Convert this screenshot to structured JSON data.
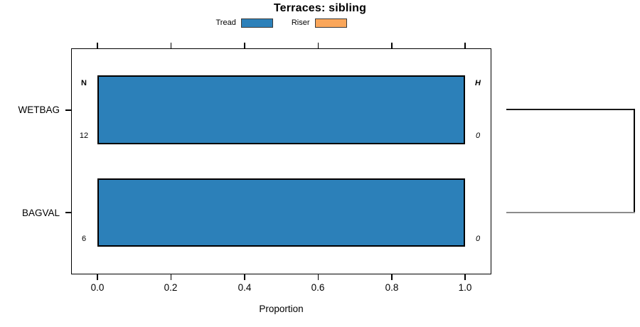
{
  "title": "Terraces: sibling",
  "legend": {
    "items": [
      {
        "label": "Tread",
        "color": "#2c80b9"
      },
      {
        "label": "Riser",
        "color": "#faa65a"
      }
    ]
  },
  "axis": {
    "xlabel": "Proportion",
    "xtick_labels": [
      "0.0",
      "0.2",
      "0.4",
      "0.6",
      "0.8",
      "1.0"
    ]
  },
  "annotations": {
    "left_header": "N",
    "right_header": "H",
    "n_values": [
      "12",
      "6"
    ],
    "h_values": [
      "0",
      "0"
    ]
  },
  "chart_data": {
    "type": "bar",
    "orientation": "horizontal",
    "title": "Terraces: sibling",
    "xlabel": "Proportion",
    "xlim": [
      0,
      1.08
    ],
    "xticks": [
      0.0,
      0.2,
      0.4,
      0.6,
      0.8,
      1.0
    ],
    "grid": false,
    "legend_position": "top-center",
    "categories": [
      "WETBAG",
      "BAGVAL"
    ],
    "series": [
      {
        "name": "Tread",
        "color": "#2c80b9",
        "values": [
          1.0,
          1.0
        ]
      },
      {
        "name": "Riser",
        "color": "#faa65a",
        "values": [
          0.0,
          0.0
        ]
      }
    ],
    "per_category_annotations": [
      {
        "category": "WETBAG",
        "N": 12,
        "H": 0
      },
      {
        "category": "BAGVAL",
        "N": 6,
        "H": 0
      }
    ],
    "right_bracket": {
      "connects": [
        "WETBAG",
        "BAGVAL"
      ],
      "top_line_color": "#1a1a1a",
      "bottom_line_color": "#8c8c8c",
      "vertical_line_color": "#000000"
    }
  }
}
